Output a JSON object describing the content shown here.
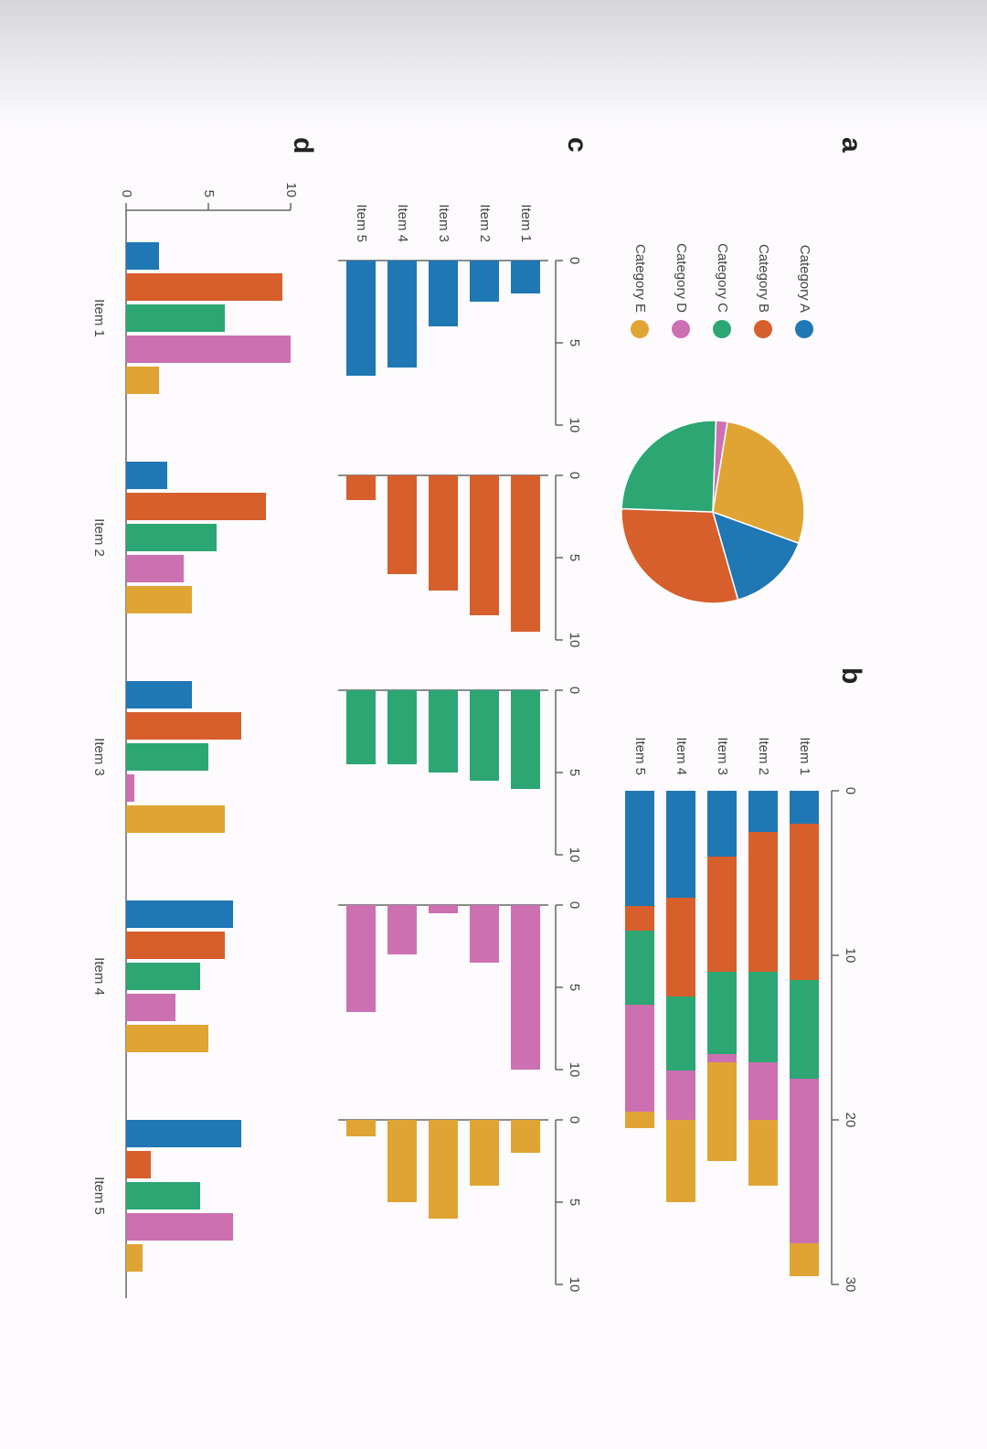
{
  "chart_data": [
    {
      "type": "pie",
      "label": "a",
      "categories": [
        "Category A",
        "Category B",
        "Category C",
        "Category D",
        "Category E"
      ],
      "values": [
        15,
        30,
        25,
        2,
        28
      ],
      "colors": [
        "#1f77b4",
        "#d65f2c",
        "#2ca673",
        "#cc70b2",
        "#e0a434"
      ],
      "legend": "left"
    },
    {
      "type": "stacked-bar",
      "label": "b",
      "categories": [
        "Item 1",
        "Item 2",
        "Item 3",
        "Item 4",
        "Item 5"
      ],
      "series": [
        {
          "color": "#1f77b4",
          "values": [
            2,
            2.5,
            4,
            6.5,
            7
          ]
        },
        {
          "color": "#d65f2c",
          "values": [
            9.5,
            8.5,
            7,
            6,
            1.5
          ]
        },
        {
          "color": "#2ca673",
          "values": [
            6,
            5.5,
            5,
            4.5,
            4.5
          ]
        },
        {
          "color": "#cc70b2",
          "values": [
            10,
            3.5,
            0.5,
            3,
            6.5
          ]
        },
        {
          "color": "#e0a434",
          "values": [
            2,
            4,
            6,
            5,
            1
          ]
        }
      ],
      "xlim": [
        0,
        30
      ],
      "xticks": [
        0,
        10,
        20,
        30
      ]
    },
    {
      "type": "small-multiples",
      "label": "c",
      "categories": [
        "Item 1",
        "Item 2",
        "Item 3",
        "Item 4",
        "Item 5"
      ],
      "series": [
        {
          "color": "#1f77b4",
          "values": [
            2,
            2.5,
            4,
            6.5,
            7
          ]
        },
        {
          "color": "#d65f2c",
          "values": [
            9.5,
            8.5,
            7,
            6,
            1.5
          ]
        },
        {
          "color": "#2ca673",
          "values": [
            6,
            5.5,
            5,
            4.5,
            4.5
          ]
        },
        {
          "color": "#cc70b2",
          "values": [
            10,
            3.5,
            0.5,
            3,
            6.5
          ]
        },
        {
          "color": "#e0a434",
          "values": [
            2,
            4,
            6,
            5,
            1
          ]
        }
      ],
      "xlim": [
        0,
        10
      ],
      "xticks": [
        0,
        5,
        10
      ]
    },
    {
      "type": "grouped-bar",
      "label": "d",
      "categories": [
        "Item 1",
        "Item 2",
        "Item 3",
        "Item 4",
        "Item 5"
      ],
      "series": [
        {
          "color": "#1f77b4",
          "values": [
            2,
            2.5,
            4,
            6.5,
            7
          ]
        },
        {
          "color": "#d65f2c",
          "values": [
            9.5,
            8.5,
            7,
            6,
            1.5
          ]
        },
        {
          "color": "#2ca673",
          "values": [
            6,
            5.5,
            5,
            4.5,
            4.5
          ]
        },
        {
          "color": "#cc70b2",
          "values": [
            10,
            3.5,
            0.5,
            3,
            6.5
          ]
        },
        {
          "color": "#e0a434",
          "values": [
            2,
            4,
            6,
            5,
            1
          ]
        }
      ],
      "ylim": [
        0,
        10
      ],
      "yticks": [
        0,
        5,
        10
      ]
    }
  ]
}
